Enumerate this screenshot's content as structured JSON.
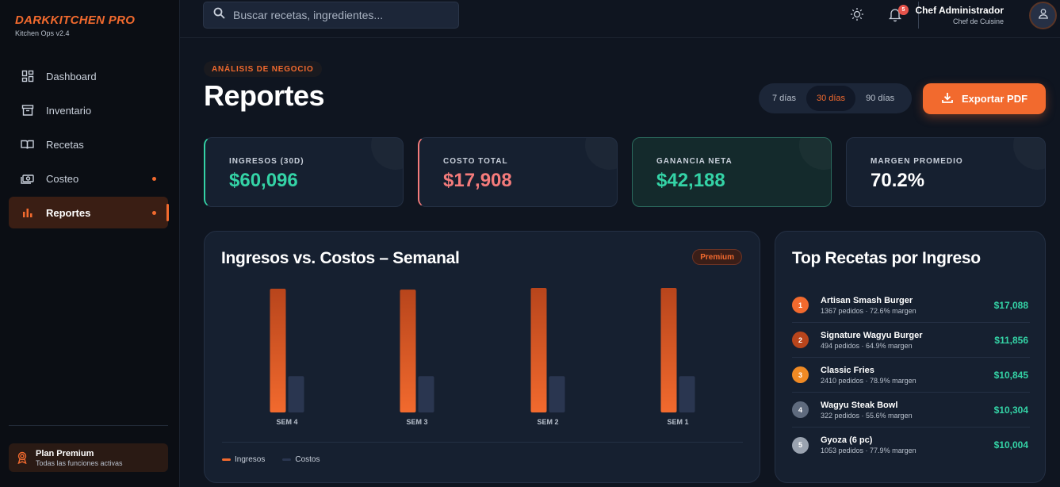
{
  "brand": {
    "title": "DARKKITCHEN PRO",
    "version": "Kitchen Ops v2.4"
  },
  "sidebar": {
    "items": [
      {
        "label": "Dashboard",
        "icon": "dashboard-icon",
        "active": false,
        "dot": false
      },
      {
        "label": "Inventario",
        "icon": "archive-icon",
        "active": false,
        "dot": false
      },
      {
        "label": "Recetas",
        "icon": "book-icon",
        "active": false,
        "dot": false
      },
      {
        "label": "Costeo",
        "icon": "money-icon",
        "active": false,
        "dot": true
      },
      {
        "label": "Reportes",
        "icon": "bar-chart-icon",
        "active": true,
        "dot": true
      }
    ],
    "plan": {
      "title": "Plan Premium",
      "subtitle": "Todas las funciones activas"
    }
  },
  "topbar": {
    "search_placeholder": "Buscar recetas, ingredientes...",
    "notifications": "5",
    "user_name": "Chef Administrador",
    "user_role": "Chef de Cuisine"
  },
  "header": {
    "eyebrow": "ANÁLISIS DE NEGOCIO",
    "title": "Reportes",
    "ranges": [
      "7 días",
      "30 días",
      "90 días"
    ],
    "selected_range": "30 días",
    "export_label": "Exportar PDF"
  },
  "kpis": [
    {
      "label": "INGRESOS (30D)",
      "value": "$60,096",
      "color": "#34d3a6"
    },
    {
      "label": "COSTO TOTAL",
      "value": "$17,908",
      "color": "#f47b7b"
    },
    {
      "label": "GANANCIA NETA",
      "value": "$42,188",
      "color": "#34d3a6"
    },
    {
      "label": "MARGEN PROMEDIO",
      "value": "70.2%",
      "color": "#ffffff"
    }
  ],
  "chart": {
    "title": "Ingresos vs. Costos – Semanal",
    "badge": "Premium",
    "legend_ingresos": "Ingresos",
    "legend_costos": "Costos"
  },
  "chart_data": {
    "type": "bar",
    "categories": [
      "SEM 4",
      "SEM 3",
      "SEM 2",
      "SEM 1"
    ],
    "series": [
      {
        "name": "Ingresos",
        "values": [
          15000,
          14900,
          15100,
          15100
        ],
        "color": "#f26a2e"
      },
      {
        "name": "Costos",
        "values": [
          4400,
          4400,
          4400,
          4400
        ],
        "color": "#2a3650"
      }
    ],
    "ylim": [
      0,
      15100
    ],
    "grid": false,
    "legend": "bottom-left"
  },
  "top_recipes": {
    "title": "Top Recetas por Ingreso",
    "items": [
      {
        "rank": "1",
        "name": "Artisan Smash Burger",
        "meta": "1367 pedidos · 72.6% margen",
        "value": "$17,088",
        "color": "#f26a2e"
      },
      {
        "rank": "2",
        "name": "Signature Wagyu Burger",
        "meta": "494 pedidos · 64.9% margen",
        "value": "$11,856",
        "color": "#b8451c"
      },
      {
        "rank": "3",
        "name": "Classic Fries",
        "meta": "2410 pedidos · 78.9% margen",
        "value": "$10,845",
        "color": "#f08a24"
      },
      {
        "rank": "4",
        "name": "Wagyu Steak Bowl",
        "meta": "322 pedidos · 55.6% margen",
        "value": "$10,304",
        "color": "#5f6b7e"
      },
      {
        "rank": "5",
        "name": "Gyoza (6 pc)",
        "meta": "1053 pedidos · 77.9% margen",
        "value": "$10,004",
        "color": "#9aa3b0"
      }
    ]
  }
}
